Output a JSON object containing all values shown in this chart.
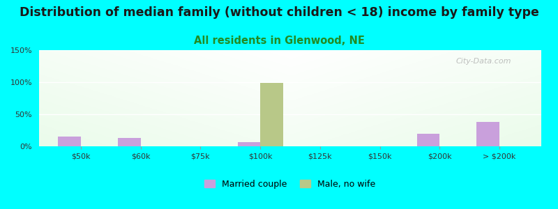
{
  "title": "Distribution of median family (without children < 18) income by family type",
  "subtitle": "All residents in Glenwood, NE",
  "background_color": "#00FFFF",
  "categories": [
    "$50k",
    "$60k",
    "$75k",
    "$100k",
    "$125k",
    "$150k",
    "$200k",
    "> $200k"
  ],
  "married_couple": [
    15,
    13,
    0,
    7,
    0,
    0,
    20,
    38
  ],
  "male_no_wife": [
    0,
    0,
    0,
    99,
    0,
    0,
    0,
    0
  ],
  "married_color": "#c9a0dc",
  "male_color": "#b8c888",
  "ylim": [
    0,
    150
  ],
  "yticks": [
    0,
    50,
    100,
    150
  ],
  "ytick_labels": [
    "0%",
    "50%",
    "100%",
    "150%"
  ],
  "bar_width": 0.38,
  "title_fontsize": 12.5,
  "subtitle_fontsize": 10.5,
  "subtitle_color": "#228B22",
  "watermark": "City-Data.com",
  "legend_labels": [
    "Married couple",
    "Male, no wife"
  ]
}
